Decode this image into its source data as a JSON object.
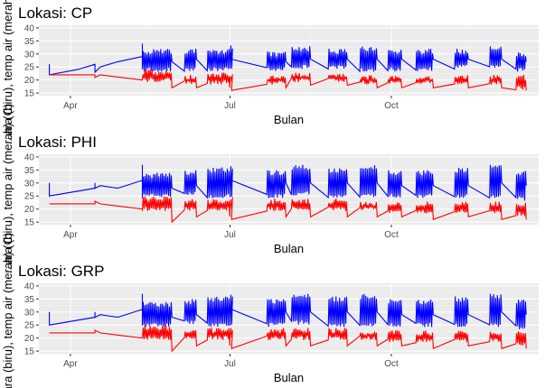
{
  "colors": {
    "panel_bg": "#ebebeb",
    "grid_major": "#ffffff",
    "grid_minor": "#f5f5f5",
    "air_temp": "#0000ff",
    "water_temp": "#ff0000"
  },
  "chart_data": [
    {
      "type": "line",
      "title": "Lokasi: CP",
      "xlabel": "Bulan",
      "ylabel": "...ara (biru), temp air (merah) (C)",
      "x_ticks": [
        "Apr",
        "Jul",
        "Oct"
      ],
      "y_ticks": [
        "15",
        "20",
        "25",
        "30",
        "35",
        "40"
      ],
      "ylim": [
        14,
        41
      ],
      "grid": true,
      "series": [
        {
          "color": "#0000ff",
          "profile": "air",
          "points": [
            [
              "2017-03-20",
              22
            ],
            [
              "2017-03-20",
              26
            ],
            [
              "2017-03-20",
              22
            ],
            [
              "2017-04-05",
              24
            ],
            [
              "2017-04-15",
              26
            ],
            [
              "2017-04-15",
              23
            ],
            [
              "2017-04-18",
              25
            ],
            [
              "2017-04-28",
              27
            ],
            [
              "2017-05-12",
              29
            ],
            [
              "2017-05-12",
              34
            ],
            [
              "2017-05-12",
              29
            ]
          ]
        },
        {
          "color": "#ff0000",
          "profile": "water",
          "points": [
            [
              "2017-03-20",
              22
            ],
            [
              "2017-04-15",
              22
            ],
            [
              "2017-04-15",
              21
            ],
            [
              "2017-04-18",
              22
            ],
            [
              "2017-05-12",
              20
            ]
          ]
        }
      ],
      "bursts": [
        {
          "start": "2017-05-12",
          "end": "2017-05-28",
          "air": [
            24,
            31,
            27
          ],
          "water": [
            20,
            23,
            17
          ]
        },
        {
          "start": "2017-06-05",
          "end": "2017-06-11",
          "air": [
            24,
            31,
            28
          ],
          "water": [
            19,
            21,
            17
          ]
        },
        {
          "start": "2017-06-18",
          "end": "2017-06-30",
          "air": [
            24,
            31,
            28
          ],
          "water": [
            19,
            22,
            17
          ]
        },
        {
          "start": "2017-07-01",
          "end": "2017-07-01",
          "air": [
            25,
            33,
            28
          ],
          "water": [
            20,
            22,
            16
          ]
        },
        {
          "start": "2017-07-22",
          "end": "2017-08-01",
          "air": [
            24,
            30,
            27
          ],
          "water": [
            19,
            21,
            17
          ]
        },
        {
          "start": "2017-08-05",
          "end": "2017-08-15",
          "air": [
            25,
            32,
            28
          ],
          "water": [
            20,
            22,
            18
          ]
        },
        {
          "start": "2017-08-26",
          "end": "2017-09-05",
          "air": [
            25,
            31,
            28
          ],
          "water": [
            20,
            22,
            18
          ]
        },
        {
          "start": "2017-09-13",
          "end": "2017-09-22",
          "air": [
            24,
            32,
            28
          ],
          "water": [
            19,
            21,
            17
          ]
        },
        {
          "start": "2017-09-29",
          "end": "2017-10-06",
          "air": [
            24,
            31,
            28
          ],
          "water": [
            19,
            21,
            17
          ]
        },
        {
          "start": "2017-10-15",
          "end": "2017-10-24",
          "air": [
            24,
            31,
            28
          ],
          "water": [
            19,
            21,
            17
          ]
        },
        {
          "start": "2017-11-06",
          "end": "2017-11-13",
          "air": [
            25,
            31,
            28
          ],
          "water": [
            19,
            21,
            17
          ]
        },
        {
          "start": "2017-11-26",
          "end": "2017-12-02",
          "air": [
            25,
            32,
            28
          ],
          "water": [
            19,
            21,
            17
          ]
        },
        {
          "start": "2017-12-11",
          "end": "2017-12-16",
          "air": [
            24,
            30,
            27
          ],
          "water": [
            17,
            21,
            16
          ]
        }
      ]
    },
    {
      "type": "line",
      "title": "Lokasi: PHI",
      "xlabel": "Bulan",
      "ylabel": "...ara (biru), temp air (merah) (C)",
      "x_ticks": [
        "Apr",
        "Jul",
        "Oct"
      ],
      "y_ticks": [
        "15",
        "20",
        "25",
        "30",
        "35",
        "40"
      ],
      "ylim": [
        14,
        41
      ],
      "grid": true,
      "series": [
        {
          "color": "#0000ff",
          "profile": "air",
          "points": [
            [
              "2017-03-20",
              25
            ],
            [
              "2017-03-20",
              30
            ],
            [
              "2017-03-20",
              25
            ],
            [
              "2017-04-15",
              28
            ],
            [
              "2017-04-15",
              30
            ],
            [
              "2017-04-15",
              28
            ],
            [
              "2017-04-18",
              29
            ],
            [
              "2017-04-28",
              28
            ],
            [
              "2017-05-12",
              31
            ],
            [
              "2017-05-12",
              37
            ],
            [
              "2017-05-12",
              31
            ]
          ]
        },
        {
          "color": "#ff0000",
          "profile": "water",
          "points": [
            [
              "2017-03-20",
              22
            ],
            [
              "2017-04-15",
              22
            ],
            [
              "2017-04-15",
              23
            ],
            [
              "2017-04-18",
              22
            ],
            [
              "2017-05-12",
              20
            ]
          ]
        }
      ],
      "bursts": [
        {
          "start": "2017-05-12",
          "end": "2017-05-28",
          "air": [
            25,
            33,
            28
          ],
          "water": [
            20,
            24,
            15
          ]
        },
        {
          "start": "2017-06-05",
          "end": "2017-06-11",
          "air": [
            26,
            34,
            29
          ],
          "water": [
            20,
            23,
            17
          ]
        },
        {
          "start": "2017-06-18",
          "end": "2017-06-30",
          "air": [
            25,
            35,
            29
          ],
          "water": [
            20,
            23,
            17
          ]
        },
        {
          "start": "2017-07-01",
          "end": "2017-07-01",
          "air": [
            25,
            36,
            31
          ],
          "water": [
            20,
            24,
            16
          ]
        },
        {
          "start": "2017-07-22",
          "end": "2017-08-01",
          "air": [
            25,
            34,
            30
          ],
          "water": [
            20,
            23,
            17
          ]
        },
        {
          "start": "2017-08-05",
          "end": "2017-08-15",
          "air": [
            26,
            36,
            30
          ],
          "water": [
            20,
            23,
            17
          ]
        },
        {
          "start": "2017-08-26",
          "end": "2017-09-05",
          "air": [
            25,
            35,
            30
          ],
          "water": [
            20,
            23,
            17
          ]
        },
        {
          "start": "2017-09-13",
          "end": "2017-09-22",
          "air": [
            25,
            36,
            30
          ],
          "water": [
            20,
            22,
            17
          ]
        },
        {
          "start": "2017-09-29",
          "end": "2017-10-06",
          "air": [
            25,
            34,
            29
          ],
          "water": [
            19,
            22,
            17
          ]
        },
        {
          "start": "2017-10-15",
          "end": "2017-10-24",
          "air": [
            25,
            34,
            29
          ],
          "water": [
            19,
            22,
            16
          ]
        },
        {
          "start": "2017-11-06",
          "end": "2017-11-13",
          "air": [
            25,
            35,
            29
          ],
          "water": [
            19,
            22,
            17
          ]
        },
        {
          "start": "2017-11-26",
          "end": "2017-12-02",
          "air": [
            25,
            36,
            30
          ],
          "water": [
            19,
            22,
            16
          ]
        },
        {
          "start": "2017-12-11",
          "end": "2017-12-16",
          "air": [
            24,
            34,
            29
          ],
          "water": [
            18,
            22,
            16
          ]
        }
      ]
    },
    {
      "type": "line",
      "title": "Lokasi: GRP",
      "xlabel": "Bulan",
      "ylabel": "...ara (biru), temp air (merah) (C)",
      "x_ticks": [
        "Apr",
        "Jul",
        "Oct"
      ],
      "y_ticks": [
        "15",
        "20",
        "25",
        "30",
        "35",
        "40"
      ],
      "ylim": [
        14,
        41
      ],
      "grid": true,
      "series": [
        {
          "color": "#0000ff",
          "profile": "air",
          "points": [
            [
              "2017-03-20",
              25
            ],
            [
              "2017-03-20",
              30
            ],
            [
              "2017-03-20",
              25
            ],
            [
              "2017-04-15",
              28
            ],
            [
              "2017-04-15",
              30
            ],
            [
              "2017-04-15",
              28
            ],
            [
              "2017-04-18",
              29
            ],
            [
              "2017-04-28",
              28
            ],
            [
              "2017-05-12",
              31
            ],
            [
              "2017-05-12",
              37
            ],
            [
              "2017-05-12",
              31
            ]
          ]
        },
        {
          "color": "#ff0000",
          "profile": "water",
          "points": [
            [
              "2017-03-20",
              22
            ],
            [
              "2017-04-15",
              22
            ],
            [
              "2017-04-15",
              23
            ],
            [
              "2017-04-18",
              22
            ],
            [
              "2017-05-12",
              20
            ]
          ]
        }
      ],
      "bursts": [
        {
          "start": "2017-05-12",
          "end": "2017-05-28",
          "air": [
            25,
            33,
            28
          ],
          "water": [
            20,
            24,
            15
          ]
        },
        {
          "start": "2017-06-05",
          "end": "2017-06-11",
          "air": [
            26,
            34,
            29
          ],
          "water": [
            20,
            23,
            17
          ]
        },
        {
          "start": "2017-06-18",
          "end": "2017-06-30",
          "air": [
            25,
            35,
            29
          ],
          "water": [
            20,
            23,
            17
          ]
        },
        {
          "start": "2017-07-01",
          "end": "2017-07-01",
          "air": [
            25,
            36,
            31
          ],
          "water": [
            20,
            24,
            16
          ]
        },
        {
          "start": "2017-07-22",
          "end": "2017-08-01",
          "air": [
            25,
            34,
            30
          ],
          "water": [
            20,
            23,
            17
          ]
        },
        {
          "start": "2017-08-05",
          "end": "2017-08-15",
          "air": [
            26,
            36,
            30
          ],
          "water": [
            20,
            23,
            17
          ]
        },
        {
          "start": "2017-08-26",
          "end": "2017-09-05",
          "air": [
            25,
            35,
            30
          ],
          "water": [
            20,
            23,
            17
          ]
        },
        {
          "start": "2017-09-13",
          "end": "2017-09-22",
          "air": [
            25,
            36,
            30
          ],
          "water": [
            20,
            22,
            17
          ]
        },
        {
          "start": "2017-09-29",
          "end": "2017-10-06",
          "air": [
            25,
            34,
            29
          ],
          "water": [
            19,
            22,
            17
          ]
        },
        {
          "start": "2017-10-15",
          "end": "2017-10-24",
          "air": [
            25,
            34,
            29
          ],
          "water": [
            19,
            22,
            16
          ]
        },
        {
          "start": "2017-11-06",
          "end": "2017-11-13",
          "air": [
            25,
            35,
            29
          ],
          "water": [
            19,
            22,
            17
          ]
        },
        {
          "start": "2017-11-26",
          "end": "2017-12-02",
          "air": [
            25,
            36,
            30
          ],
          "water": [
            19,
            22,
            16
          ]
        },
        {
          "start": "2017-12-11",
          "end": "2017-12-16",
          "air": [
            24,
            34,
            29
          ],
          "water": [
            18,
            22,
            16
          ]
        }
      ]
    }
  ]
}
